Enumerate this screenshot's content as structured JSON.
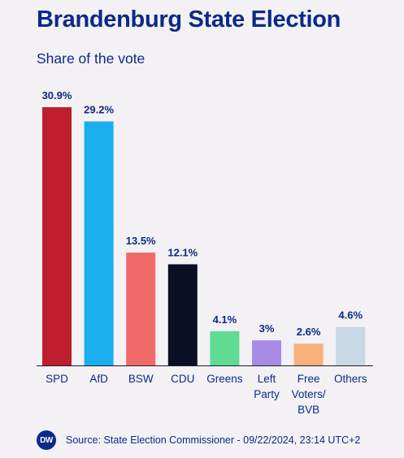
{
  "title": "Brandenburg State Election",
  "subtitle": "Share of the vote",
  "footer": {
    "logo": "DW",
    "source": "Source: State Election Commissioner - 09/22/2024, 23:14 UTC+2"
  },
  "chart_data": {
    "type": "bar",
    "title": "Brandenburg State Election",
    "subtitle": "Share of the vote",
    "categories": [
      [
        "SPD"
      ],
      [
        "AfD"
      ],
      [
        "BSW"
      ],
      [
        "CDU"
      ],
      [
        "Greens"
      ],
      [
        "Left",
        "Party"
      ],
      [
        "Free",
        "Voters/",
        "BVB"
      ],
      [
        "Others"
      ]
    ],
    "values": [
      30.9,
      29.2,
      13.5,
      12.1,
      4.1,
      3,
      2.6,
      4.6
    ],
    "value_labels": [
      "30.9%",
      "29.2%",
      "13.5%",
      "12.1%",
      "4.1%",
      "3%",
      "2.6%",
      "4.6%"
    ],
    "colors": [
      "#be1e2d",
      "#1aaeef",
      "#f06a6a",
      "#0b0f24",
      "#5fdc91",
      "#a98be6",
      "#f9b07a",
      "#c8d9e5"
    ],
    "ylim": [
      0,
      30.9
    ],
    "grid": false,
    "legend": "none"
  }
}
